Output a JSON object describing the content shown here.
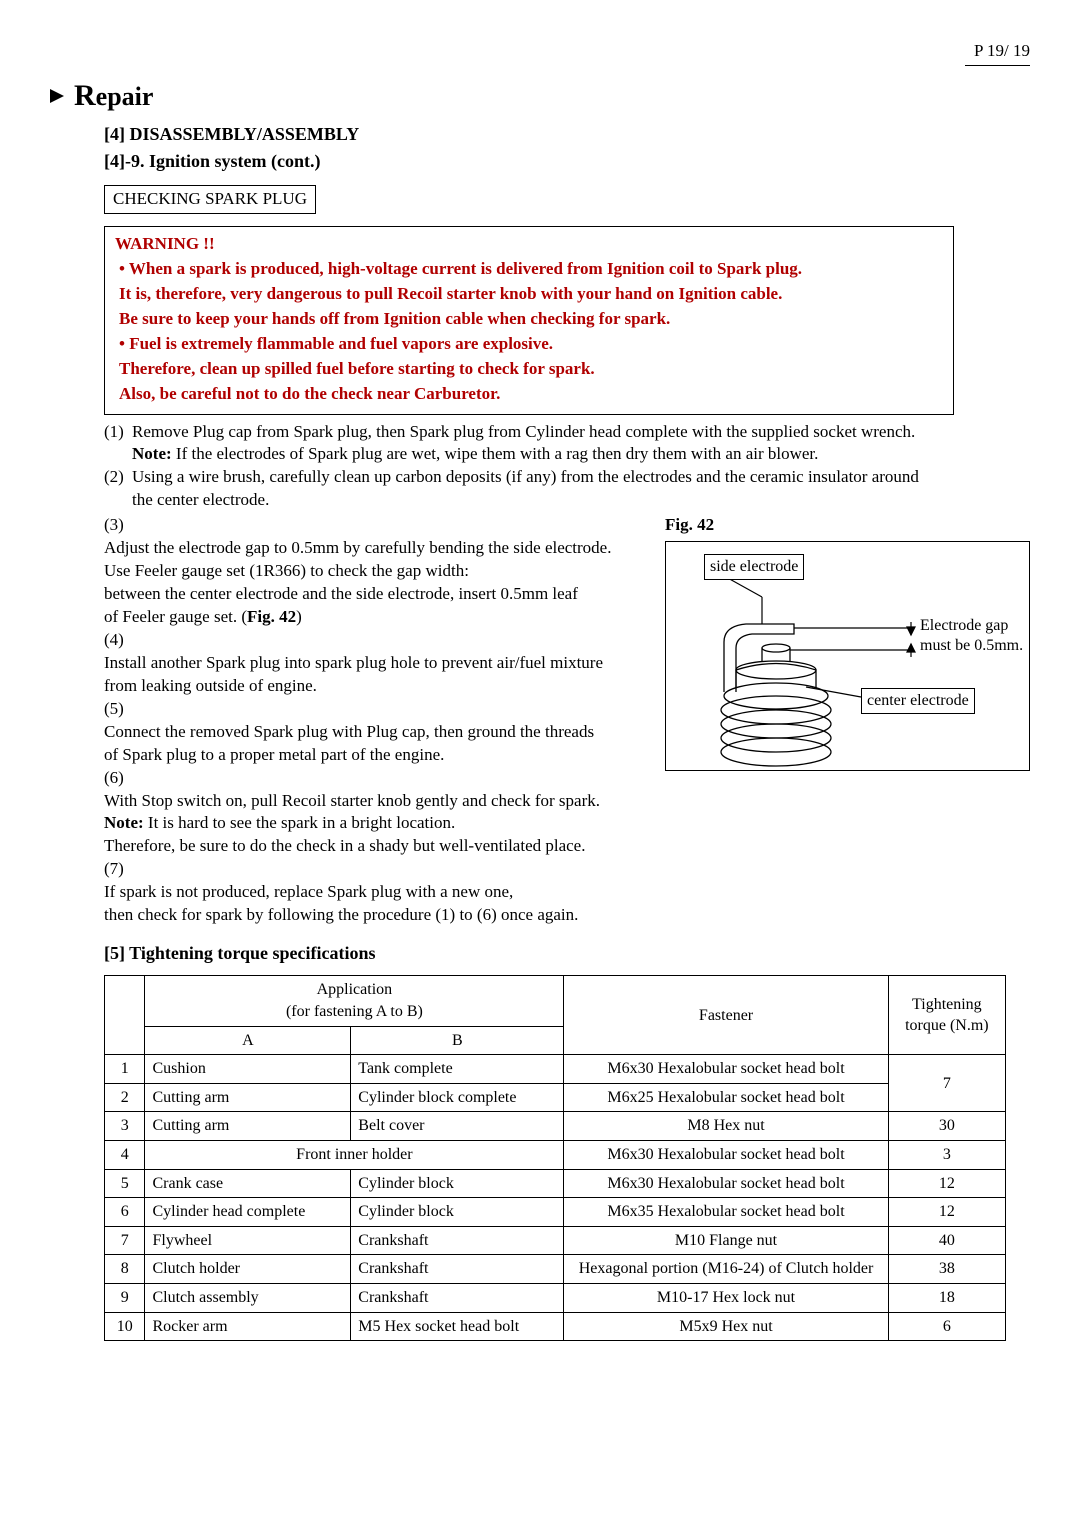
{
  "page_number": "P 19/ 19",
  "title_prefix": "R",
  "title_rest": "epair",
  "section4_heading": "[4]  DISASSEMBLY/ASSEMBLY",
  "section4_sub": "[4]-9.  Ignition system (cont.)",
  "check_label": "CHECKING SPARK PLUG",
  "warning": {
    "title": "WARNING !!",
    "bullets": [
      "• When a spark is produced, high-voltage current is delivered from Ignition coil to Spark plug.",
      "   It is, therefore, very dangerous to pull Recoil starter knob with your hand on Ignition cable.",
      "   Be sure to keep your hands off from Ignition cable when checking for spark.",
      "• Fuel is extremely flammable and fuel vapors are explosive.",
      "   Therefore, clean up spilled fuel before starting to check for spark.",
      "   Also, be careful not to do the check near Carburetor."
    ]
  },
  "steps_top": [
    {
      "n": "(1)",
      "lines": [
        "Remove Plug cap from Spark plug, then Spark plug from Cylinder head complete with the supplied socket wrench."
      ],
      "note": "If the electrodes of Spark plug are wet, wipe them with a rag then dry them with an air blower."
    },
    {
      "n": "(2)",
      "lines": [
        "Using a wire brush, carefully clean up carbon deposits (if any) from the electrodes and the ceramic insulator around",
        "the center electrode."
      ]
    }
  ],
  "steps_left": [
    {
      "n": "(3)",
      "lines": [
        "Adjust the electrode gap to 0.5mm by carefully bending the side electrode.",
        "Use Feeler gauge set (1R366) to check the gap width:",
        "between the center electrode and the side electrode, insert 0.5mm leaf"
      ],
      "tail_pre": "of Feeler gauge set. (",
      "tail_bold": "Fig. 42",
      "tail_post": ")"
    },
    {
      "n": "(4)",
      "lines": [
        "Install another Spark plug into spark plug hole to prevent air/fuel mixture",
        "from leaking outside of engine."
      ]
    },
    {
      "n": "(5)",
      "lines": [
        "Connect the removed Spark plug with Plug cap, then ground the threads",
        "of Spark plug to a proper metal part of the engine."
      ]
    },
    {
      "n": "(6)",
      "lines": [
        "With Stop switch on, pull Recoil starter knob gently and check for spark."
      ],
      "note": "It is hard to see the spark in a bright location.",
      "after_note": "Therefore, be sure to do the check in a shady but well-ventilated place."
    },
    {
      "n": "(7)",
      "lines": [
        "If spark is not produced, replace Spark plug with a new one,",
        "then check for spark by following the procedure (1) to (6) once again."
      ]
    }
  ],
  "figure": {
    "label": "Fig. 42",
    "side_electrode": "side electrode",
    "center_electrode": "center electrode",
    "gap_text_1": "Electrode gap",
    "gap_text_2": "must be 0.5mm.",
    "colors": {
      "line": "#000000"
    }
  },
  "section5_heading": "[5] Tightening torque specifications",
  "table": {
    "header": {
      "app_top": "Application",
      "app_sub": "(for fastening A to B)",
      "A": "A",
      "B": "B",
      "fastener": "Fastener",
      "torque1": "Tightening",
      "torque2": "torque (N.m)"
    },
    "col_widths": {
      "num": 26,
      "A": 190,
      "B": 195,
      "F": 300,
      "T": 100
    },
    "rows": [
      {
        "n": "1",
        "A": "Cushion",
        "B": "Tank complete",
        "F": "M6x30 Hexalobular socket head bolt",
        "T": "7",
        "T_rowspan": 2
      },
      {
        "n": "2",
        "A": "Cutting arm",
        "B": "Cylinder block complete",
        "F": "M6x25 Hexalobular socket head bolt"
      },
      {
        "n": "3",
        "A": "Cutting arm",
        "B": "Belt cover",
        "F": "M8 Hex nut",
        "T": "30"
      },
      {
        "n": "4",
        "AB": "Front inner holder",
        "F": "M6x30 Hexalobular socket head bolt",
        "T": "3"
      },
      {
        "n": "5",
        "A": "Crank case",
        "B": "Cylinder block",
        "F": "M6x30 Hexalobular socket head bolt",
        "T": "12"
      },
      {
        "n": "6",
        "A": "Cylinder head complete",
        "B": "Cylinder block",
        "F": "M6x35 Hexalobular socket head bolt",
        "T": "12"
      },
      {
        "n": "7",
        "A": "Flywheel",
        "B": "Crankshaft",
        "F": "M10 Flange nut",
        "T": "40"
      },
      {
        "n": "8",
        "A": "Clutch holder",
        "B": "Crankshaft",
        "F": "Hexagonal portion (M16-24) of Clutch holder",
        "T": "38"
      },
      {
        "n": "9",
        "A": "Clutch assembly",
        "B": "Crankshaft",
        "F": "M10-17 Hex lock nut",
        "T": "18"
      },
      {
        "n": "10",
        "A": "Rocker arm",
        "B": "M5 Hex socket head bolt",
        "F": "M5x9 Hex nut",
        "T": "6"
      }
    ]
  }
}
